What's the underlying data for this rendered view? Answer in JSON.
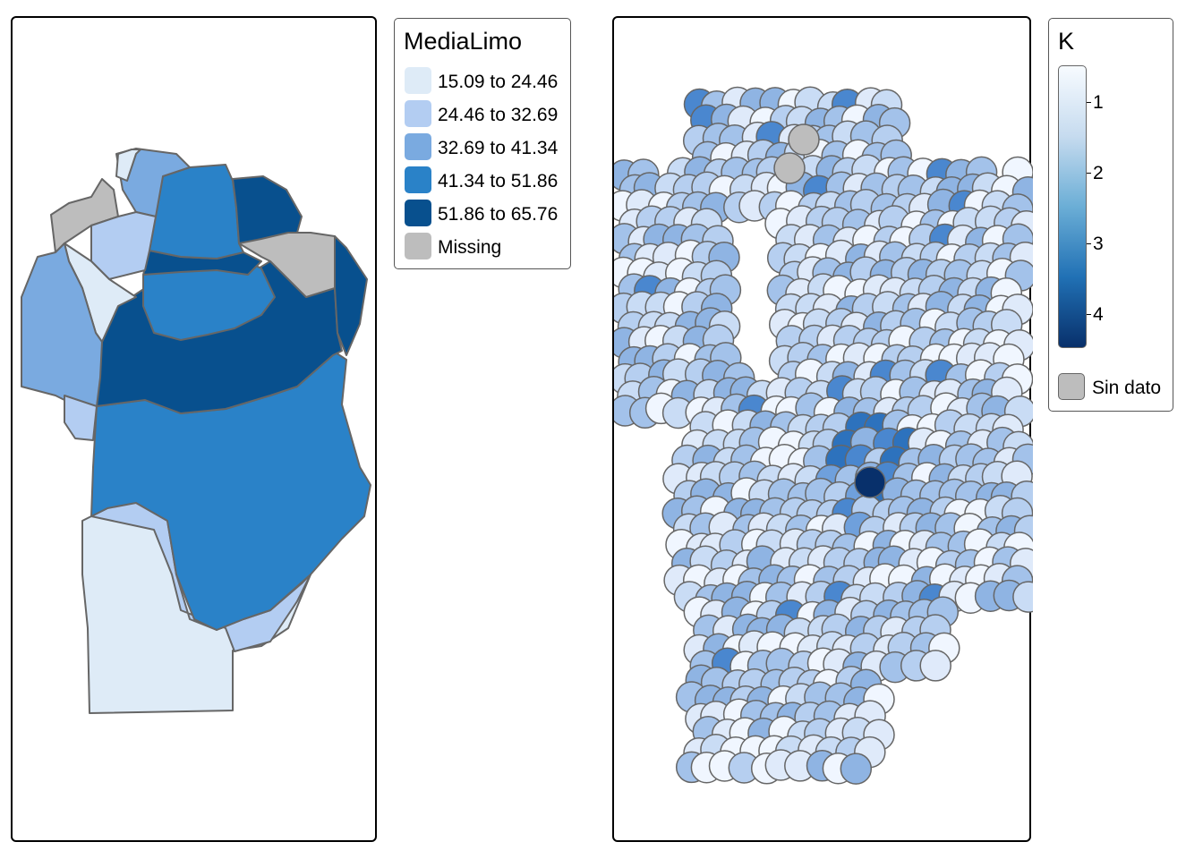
{
  "left_map": {
    "legend": {
      "title": "MediaLimo",
      "classes": [
        {
          "label": "15.09 to 24.46",
          "color": "#deebf7"
        },
        {
          "label": "24.46 to 32.69",
          "color": "#b3cdf2"
        },
        {
          "label": "32.69 to 41.34",
          "color": "#7aaae0"
        },
        {
          "label": "41.34 to 51.86",
          "color": "#2a82c8"
        },
        {
          "label": "51.86 to 65.76",
          "color": "#08508e"
        },
        {
          "label": "Missing",
          "color": "#bdbdbd"
        }
      ]
    }
  },
  "right_map": {
    "legend": {
      "title": "K",
      "ticks": [
        "1",
        "2",
        "3",
        "4"
      ],
      "gradient": [
        "#f7fbff",
        "#c6dbef",
        "#6baed6",
        "#2171b5",
        "#08306b"
      ],
      "missing_label": "Sin dato",
      "missing_color": "#bdbdbd"
    }
  }
}
